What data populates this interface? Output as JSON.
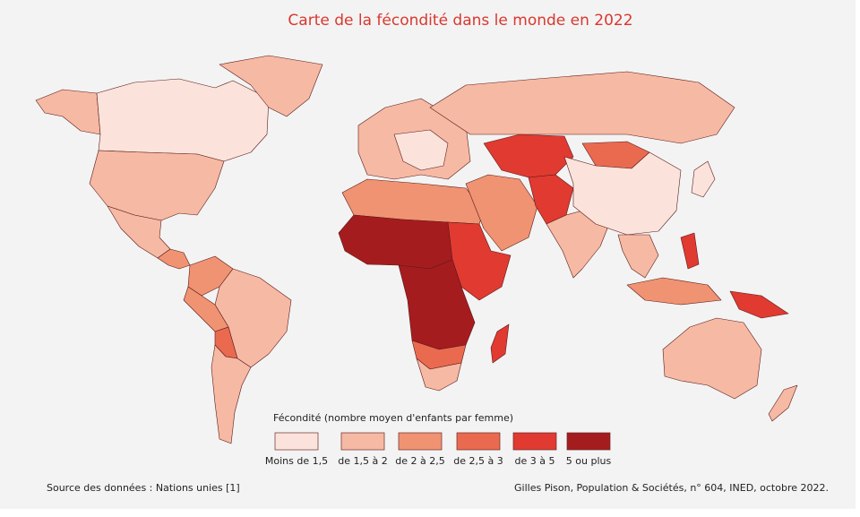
{
  "title": "Carte de la fécondité dans le monde en 2022",
  "legend": {
    "title": "Fécondité (nombre moyen d'enfants par femme)",
    "items": [
      {
        "label": "Moins de 1,5",
        "color": "#fbe3dc"
      },
      {
        "label": "de 1,5 à 2",
        "color": "#f6b9a3"
      },
      {
        "label": "de 2 à 2,5",
        "color": "#f09372"
      },
      {
        "label": "de 2,5 à 3",
        "color": "#ea6a4f"
      },
      {
        "label": "de 3 à 5",
        "color": "#e03a31"
      },
      {
        "label": "5 ou plus",
        "color": "#a51c1f"
      }
    ]
  },
  "source": "Source des données : Nations unies [1]",
  "credit": "Gilles Pison, Population & Sociétés, n° 604, INED, octobre 2022."
}
